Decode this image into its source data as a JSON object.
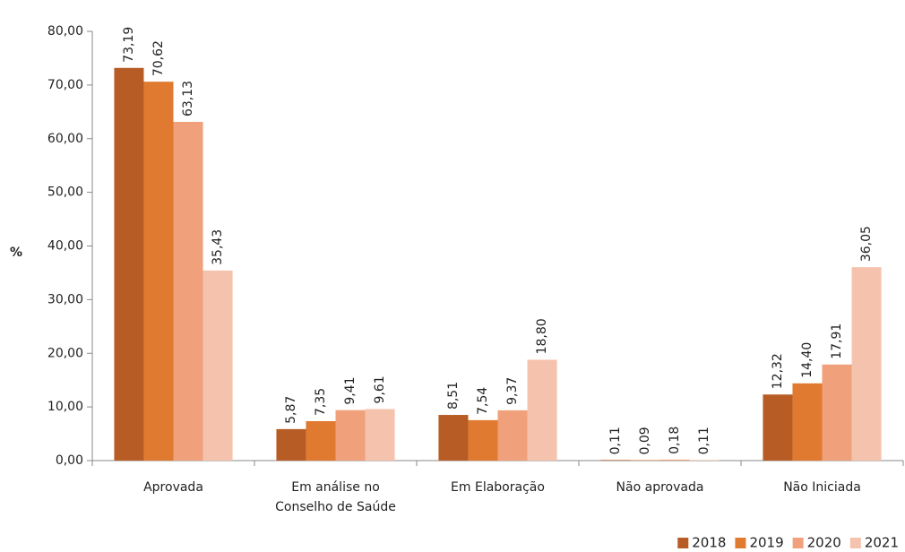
{
  "chart_data": {
    "type": "bar",
    "y_label": "%",
    "categories": [
      "Aprovada",
      "Em análise no\nConselho de Saúde",
      "Em Elaboração",
      "Não aprovada",
      "Não Iniciada"
    ],
    "series": [
      {
        "name": "2018",
        "color": "#b85c25",
        "values": [
          73.19,
          5.87,
          8.51,
          0.11,
          12.32
        ],
        "value_labels": [
          "73,19",
          "5,87",
          "8,51",
          "0,11",
          "12,32"
        ]
      },
      {
        "name": "2019",
        "color": "#e07a30",
        "values": [
          70.62,
          7.35,
          7.54,
          0.09,
          14.4
        ],
        "value_labels": [
          "70,62",
          "7,35",
          "7,54",
          "0,09",
          "14,40"
        ]
      },
      {
        "name": "2020",
        "color": "#f0a07a",
        "values": [
          63.13,
          9.41,
          9.37,
          0.18,
          17.91
        ],
        "value_labels": [
          "63,13",
          "9,41",
          "9,37",
          "0,18",
          "17,91"
        ]
      },
      {
        "name": "2021",
        "color": "#f5c3ad",
        "values": [
          35.43,
          9.61,
          18.8,
          0.11,
          36.05
        ],
        "value_labels": [
          "35,43",
          "9,61",
          "18,80",
          "0,11",
          "36,05"
        ]
      }
    ],
    "ylim": [
      0,
      80
    ],
    "yticks": [
      {
        "value": 0,
        "label": "0,00"
      },
      {
        "value": 10,
        "label": "10,00"
      },
      {
        "value": 20,
        "label": "20,00"
      },
      {
        "value": 30,
        "label": "30,00"
      },
      {
        "value": 40,
        "label": "40,00"
      },
      {
        "value": 50,
        "label": "50,00"
      },
      {
        "value": 60,
        "label": "60,00"
      },
      {
        "value": 70,
        "label": "70,00"
      },
      {
        "value": 80,
        "label": "80,00"
      }
    ],
    "legend": "bottom-right"
  }
}
